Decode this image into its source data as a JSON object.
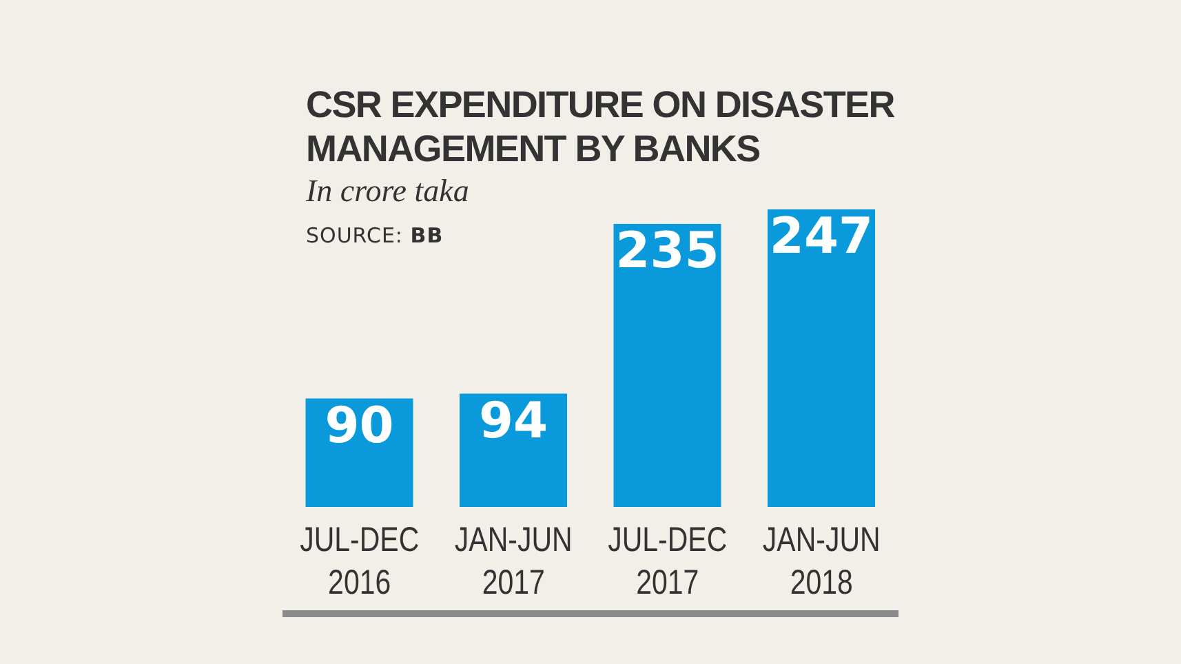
{
  "chart_data": {
    "type": "bar",
    "title": "CSR EXPENDITURE ON DISASTER MANAGEMENT BY BANKS",
    "subtitle": "In crore taka",
    "annotations": [
      "SOURCE: BB"
    ],
    "categories": [
      "JUL-DEC 2016",
      "JAN-JUN 2017",
      "JUL-DEC 2017",
      "JAN-JUN 2018"
    ],
    "values": [
      90,
      94,
      235,
      247
    ],
    "color": "#0a99da",
    "data_labels": true,
    "grid": false,
    "legend": false
  }
}
